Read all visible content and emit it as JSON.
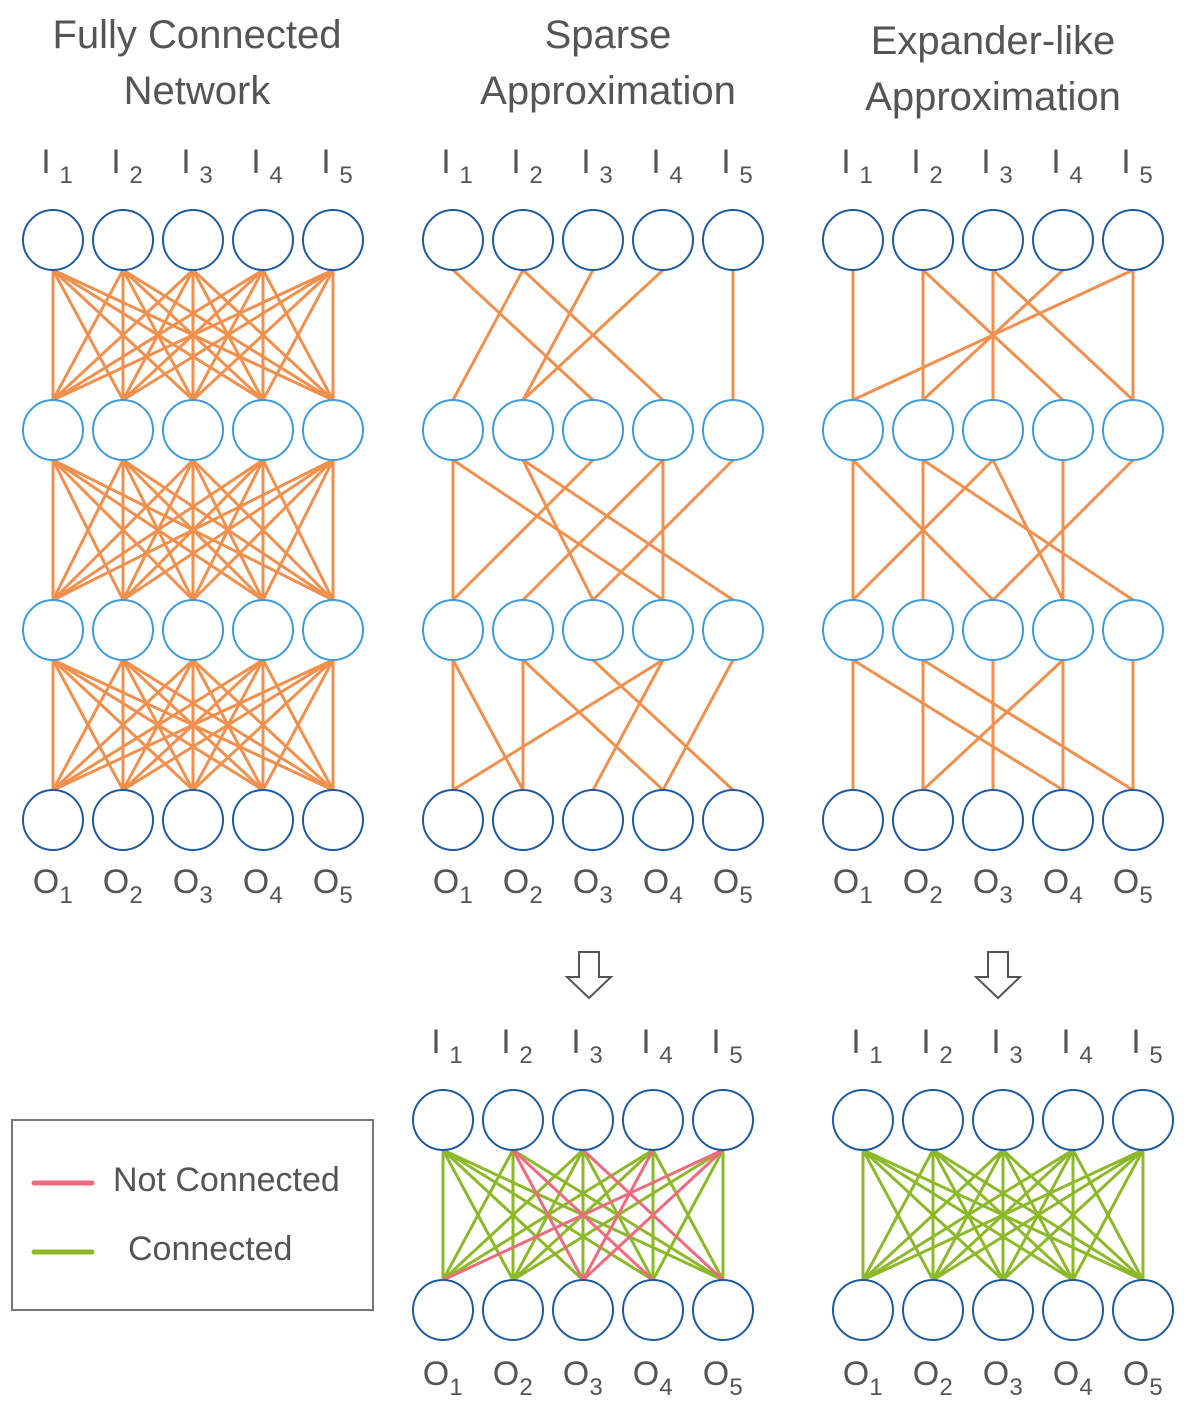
{
  "titles": {
    "full": [
      "Fully Connected",
      "Network"
    ],
    "sparse": [
      "Sparse",
      "Approximation"
    ],
    "expander": [
      "Expander-like",
      "Approximation"
    ]
  },
  "input_letter": "I",
  "output_letter": "O",
  "indices": [
    "1",
    "2",
    "3",
    "4",
    "5"
  ],
  "legend": {
    "not_connected": "Not Connected",
    "connected": "Connected"
  },
  "colors": {
    "edge": "#F0904E",
    "not_connected": "#EE6B7D",
    "connected": "#8DB82A",
    "node_outer": "#1F5A9E",
    "node_hidden": "#3E9BD6"
  },
  "networks": {
    "sparse_edges": [
      [
        [
          0,
          2
        ],
        [
          1,
          0
        ],
        [
          1,
          3
        ],
        [
          2,
          1
        ],
        [
          3,
          1
        ],
        [
          4,
          4
        ]
      ],
      [
        [
          0,
          0
        ],
        [
          0,
          3
        ],
        [
          1,
          2
        ],
        [
          1,
          4
        ],
        [
          2,
          0
        ],
        [
          3,
          1
        ],
        [
          3,
          3
        ],
        [
          4,
          2
        ]
      ],
      [
        [
          0,
          0
        ],
        [
          0,
          1
        ],
        [
          1,
          1
        ],
        [
          1,
          3
        ],
        [
          2,
          4
        ],
        [
          3,
          0
        ],
        [
          3,
          2
        ],
        [
          4,
          3
        ]
      ]
    ],
    "expander_edges": [
      [
        [
          0,
          0
        ],
        [
          1,
          1
        ],
        [
          1,
          3
        ],
        [
          2,
          2
        ],
        [
          2,
          4
        ],
        [
          3,
          1
        ],
        [
          4,
          0
        ],
        [
          4,
          4
        ]
      ],
      [
        [
          0,
          0
        ],
        [
          0,
          2
        ],
        [
          1,
          1
        ],
        [
          1,
          4
        ],
        [
          2,
          3
        ],
        [
          2,
          0
        ],
        [
          3,
          3
        ],
        [
          4,
          2
        ]
      ],
      [
        [
          0,
          0
        ],
        [
          0,
          3
        ],
        [
          1,
          1
        ],
        [
          1,
          4
        ],
        [
          2,
          2
        ],
        [
          3,
          1
        ],
        [
          3,
          3
        ],
        [
          4,
          4
        ]
      ]
    ],
    "sparse_summary_not_connected": [
      [
        1,
        2
      ],
      [
        1,
        3
      ],
      [
        2,
        4
      ],
      [
        3,
        2
      ],
      [
        4,
        2
      ],
      [
        4,
        0
      ]
    ]
  }
}
